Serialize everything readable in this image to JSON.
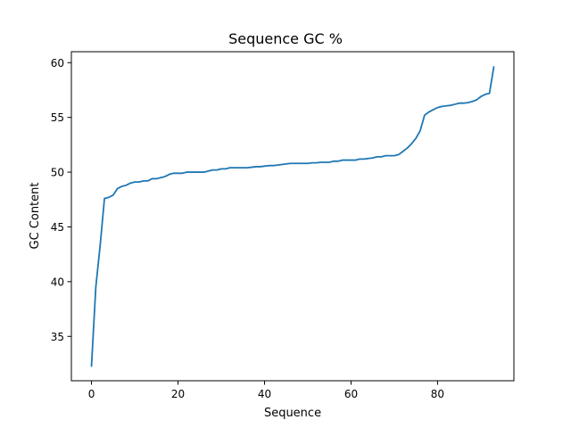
{
  "chart_data": {
    "type": "line",
    "title": "Sequence GC %",
    "xlabel": "Sequence",
    "ylabel": "GC Content",
    "xlim": [
      -4.65,
      97.65
    ],
    "ylim": [
      30.95,
      61.0
    ],
    "xticks": [
      0,
      20,
      40,
      60,
      80
    ],
    "yticks": [
      35,
      40,
      45,
      50,
      55,
      60
    ],
    "grid": false,
    "legend": "none",
    "series": [
      {
        "color": "#1f77b4",
        "x": [
          0,
          1,
          2,
          3,
          4,
          5,
          6,
          7,
          8,
          9,
          10,
          11,
          12,
          13,
          14,
          15,
          16,
          17,
          18,
          19,
          20,
          21,
          22,
          23,
          24,
          25,
          26,
          27,
          28,
          29,
          30,
          31,
          32,
          33,
          34,
          35,
          36,
          37,
          38,
          39,
          40,
          41,
          42,
          43,
          44,
          45,
          46,
          47,
          48,
          49,
          50,
          51,
          52,
          53,
          54,
          55,
          56,
          57,
          58,
          59,
          60,
          61,
          62,
          63,
          64,
          65,
          66,
          67,
          68,
          69,
          70,
          71,
          72,
          73,
          74,
          75,
          76,
          77,
          78,
          79,
          80,
          81,
          82,
          83,
          84,
          85,
          86,
          87,
          88,
          89,
          90,
          91,
          92,
          93
        ],
        "y": [
          32.3,
          39.5,
          43.3,
          47.6,
          47.7,
          47.9,
          48.5,
          48.7,
          48.8,
          49.0,
          49.1,
          49.1,
          49.2,
          49.2,
          49.4,
          49.4,
          49.5,
          49.6,
          49.8,
          49.9,
          49.9,
          49.9,
          50.0,
          50.0,
          50.0,
          50.0,
          50.0,
          50.1,
          50.2,
          50.2,
          50.3,
          50.3,
          50.4,
          50.4,
          50.4,
          50.4,
          50.4,
          50.45,
          50.5,
          50.5,
          50.55,
          50.6,
          50.6,
          50.65,
          50.7,
          50.75,
          50.8,
          50.8,
          50.8,
          50.8,
          50.8,
          50.85,
          50.85,
          50.9,
          50.9,
          50.9,
          51.0,
          51.0,
          51.1,
          51.1,
          51.1,
          51.1,
          51.2,
          51.2,
          51.25,
          51.3,
          51.4,
          51.4,
          51.5,
          51.5,
          51.5,
          51.6,
          51.9,
          52.2,
          52.6,
          53.1,
          53.8,
          55.2,
          55.5,
          55.7,
          55.9,
          56.0,
          56.05,
          56.1,
          56.2,
          56.3,
          56.3,
          56.35,
          56.45,
          56.6,
          56.9,
          57.1,
          57.2,
          59.6
        ]
      }
    ]
  }
}
